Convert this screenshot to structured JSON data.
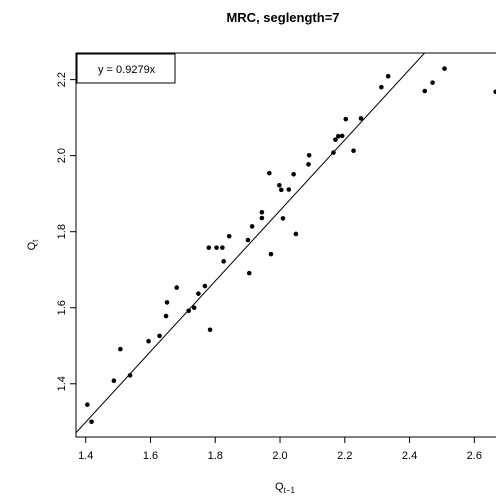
{
  "chart_data": {
    "type": "scatter",
    "title": "MRC, seglength=7",
    "xlabel": "Q",
    "xlabel_sub": "t−1",
    "ylabel": "Q",
    "ylabel_sub": "t",
    "xlim": [
      1.37,
      2.67
    ],
    "ylim": [
      1.26,
      2.27
    ],
    "xticks": [
      "1.4",
      "1.6",
      "1.8",
      "2.0",
      "2.2",
      "2.4",
      "2.6"
    ],
    "yticks": [
      "1.4",
      "1.6",
      "1.8",
      "2.0",
      "2.2"
    ],
    "legend": {
      "text": "y = 0.9279x",
      "placement": "top-left"
    },
    "fit_line": {
      "slope": 0.9279,
      "intercept": 0
    },
    "grid": false,
    "points": [
      {
        "x": 1.405,
        "y": 1.345
      },
      {
        "x": 1.418,
        "y": 1.3
      },
      {
        "x": 1.487,
        "y": 1.408
      },
      {
        "x": 1.507,
        "y": 1.491
      },
      {
        "x": 1.537,
        "y": 1.422
      },
      {
        "x": 1.594,
        "y": 1.512
      },
      {
        "x": 1.628,
        "y": 1.526
      },
      {
        "x": 1.648,
        "y": 1.578
      },
      {
        "x": 1.651,
        "y": 1.614
      },
      {
        "x": 1.681,
        "y": 1.653
      },
      {
        "x": 1.718,
        "y": 1.592
      },
      {
        "x": 1.735,
        "y": 1.6
      },
      {
        "x": 1.748,
        "y": 1.637
      },
      {
        "x": 1.768,
        "y": 1.657
      },
      {
        "x": 1.78,
        "y": 1.758
      },
      {
        "x": 1.784,
        "y": 1.542
      },
      {
        "x": 1.804,
        "y": 1.758
      },
      {
        "x": 1.822,
        "y": 1.758
      },
      {
        "x": 1.826,
        "y": 1.722
      },
      {
        "x": 1.843,
        "y": 1.788
      },
      {
        "x": 1.901,
        "y": 1.778
      },
      {
        "x": 1.905,
        "y": 1.691
      },
      {
        "x": 1.914,
        "y": 1.814
      },
      {
        "x": 1.944,
        "y": 1.836
      },
      {
        "x": 1.944,
        "y": 1.851
      },
      {
        "x": 1.967,
        "y": 1.954
      },
      {
        "x": 1.972,
        "y": 1.741
      },
      {
        "x": 1.998,
        "y": 1.922
      },
      {
        "x": 2.004,
        "y": 1.91
      },
      {
        "x": 2.009,
        "y": 1.835
      },
      {
        "x": 2.027,
        "y": 1.911
      },
      {
        "x": 2.042,
        "y": 1.951
      },
      {
        "x": 2.049,
        "y": 1.794
      },
      {
        "x": 2.088,
        "y": 1.977
      },
      {
        "x": 2.09,
        "y": 2.001
      },
      {
        "x": 2.165,
        "y": 2.008
      },
      {
        "x": 2.171,
        "y": 2.042
      },
      {
        "x": 2.18,
        "y": 2.051
      },
      {
        "x": 2.192,
        "y": 2.052
      },
      {
        "x": 2.203,
        "y": 2.096
      },
      {
        "x": 2.227,
        "y": 2.013
      },
      {
        "x": 2.25,
        "y": 2.098
      },
      {
        "x": 2.313,
        "y": 2.18
      },
      {
        "x": 2.334,
        "y": 2.209
      },
      {
        "x": 2.447,
        "y": 2.17
      },
      {
        "x": 2.471,
        "y": 2.192
      },
      {
        "x": 2.508,
        "y": 2.229
      },
      {
        "x": 2.666,
        "y": 2.168
      }
    ]
  }
}
